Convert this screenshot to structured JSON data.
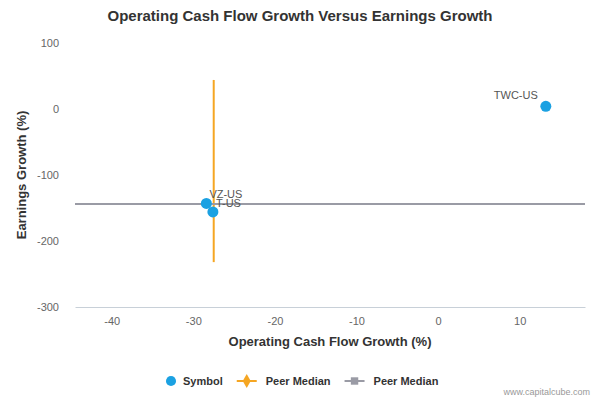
{
  "chart_data": {
    "type": "scatter",
    "title": "Operating Cash Flow Growth Versus Earnings Growth",
    "x_label": "Operating Cash Flow Growth (%)",
    "y_label": "Earnings Growth (%)",
    "xlim": [
      -44.5,
      18
    ],
    "xticks": [
      -40,
      -30,
      -20,
      -10,
      0,
      10
    ],
    "ylim": [
      -300,
      100
    ],
    "yticks": [
      -300,
      -200,
      -100,
      0,
      100
    ],
    "grid": false,
    "legend": "bottom",
    "source": "www.capitalcube.com",
    "series": [
      {
        "name": "Symbol",
        "type": "scatter",
        "color": "#1ba1e2",
        "marker": "circle",
        "x": [
          13.2,
          -28.4,
          -27.6
        ],
        "values": [
          4,
          -143,
          -156
        ],
        "labels": [
          "TWC-US",
          "VZ-US",
          "T-US"
        ]
      },
      {
        "name": "Peer Median",
        "type": "line",
        "color": "#f5a623",
        "marker": "diamond",
        "line_style": "solid",
        "x": [
          -27.5,
          -27.5
        ],
        "values": [
          44,
          -232
        ]
      },
      {
        "name": "Peer Median",
        "type": "line",
        "color": "#9a9ba5",
        "marker": "square",
        "line_style": "solid",
        "x": [
          -44.5,
          18
        ],
        "values": [
          -144,
          -144
        ]
      }
    ]
  }
}
